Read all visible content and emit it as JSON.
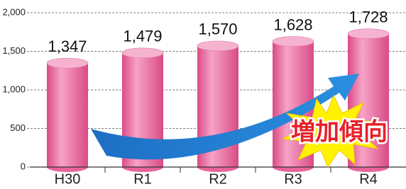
{
  "chart_data": {
    "type": "bar",
    "categories": [
      "H30",
      "R1",
      "R2",
      "R3",
      "R4"
    ],
    "values": [
      1347,
      1479,
      1570,
      1628,
      1728
    ],
    "value_labels": [
      "1,347",
      "1,479",
      "1,570",
      "1,628",
      "1,728"
    ],
    "color": "#e8649a",
    "ylim": [
      0,
      2000
    ],
    "yticks": [
      0,
      500,
      {
        "value": 1000,
        "label": "1,000"
      },
      {
        "value": 1500,
        "label": "1,500"
      },
      {
        "value": 2000,
        "label": "2,000"
      }
    ],
    "grid": true,
    "annotation": "増加傾向"
  }
}
